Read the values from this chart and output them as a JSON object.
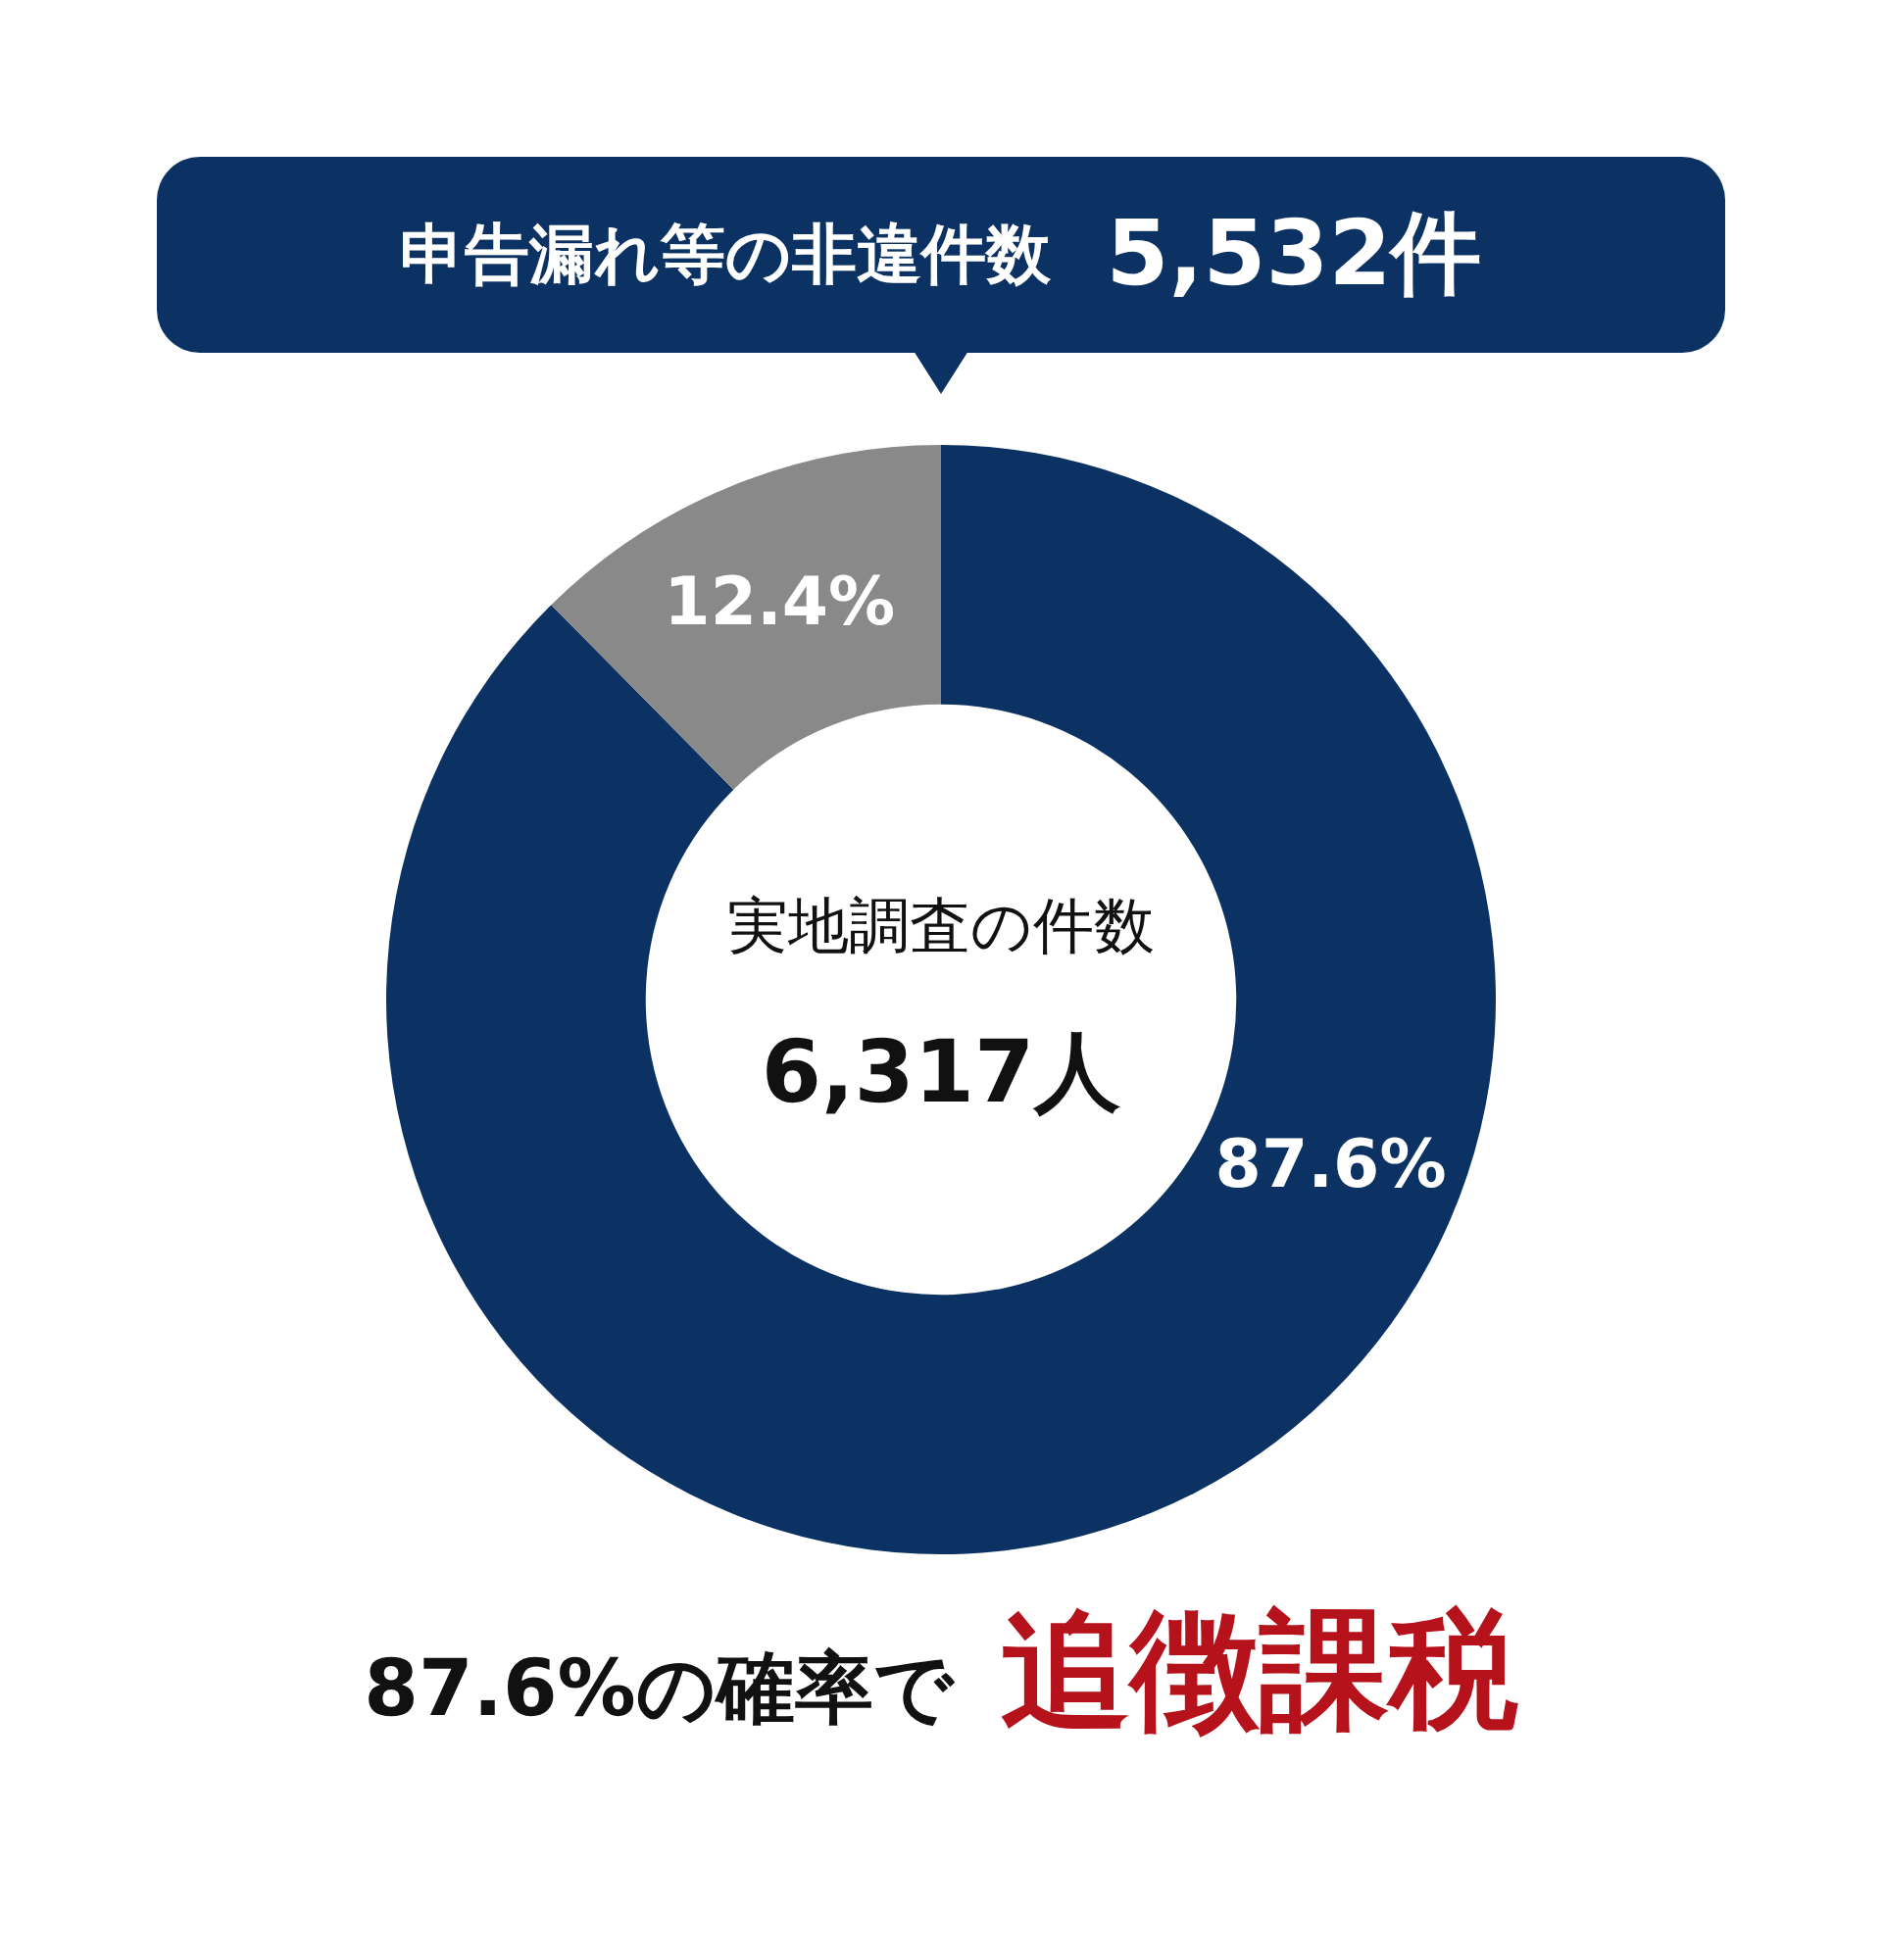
{
  "chart_data": {
    "type": "donut",
    "title": "申告漏れ等の非違件数",
    "subtitle": "5,532件",
    "categories": [
      null,
      null
    ],
    "values": [
      87.6,
      12.4
    ],
    "colors": [
      "#0c3263",
      "#898989"
    ],
    "value_labels": [
      "87.6%",
      "12.4%"
    ],
    "legend": false,
    "annotations": [
      "実地調査の件数",
      "6,317人",
      "87.6%の確率で",
      "追徴課税"
    ]
  }
}
